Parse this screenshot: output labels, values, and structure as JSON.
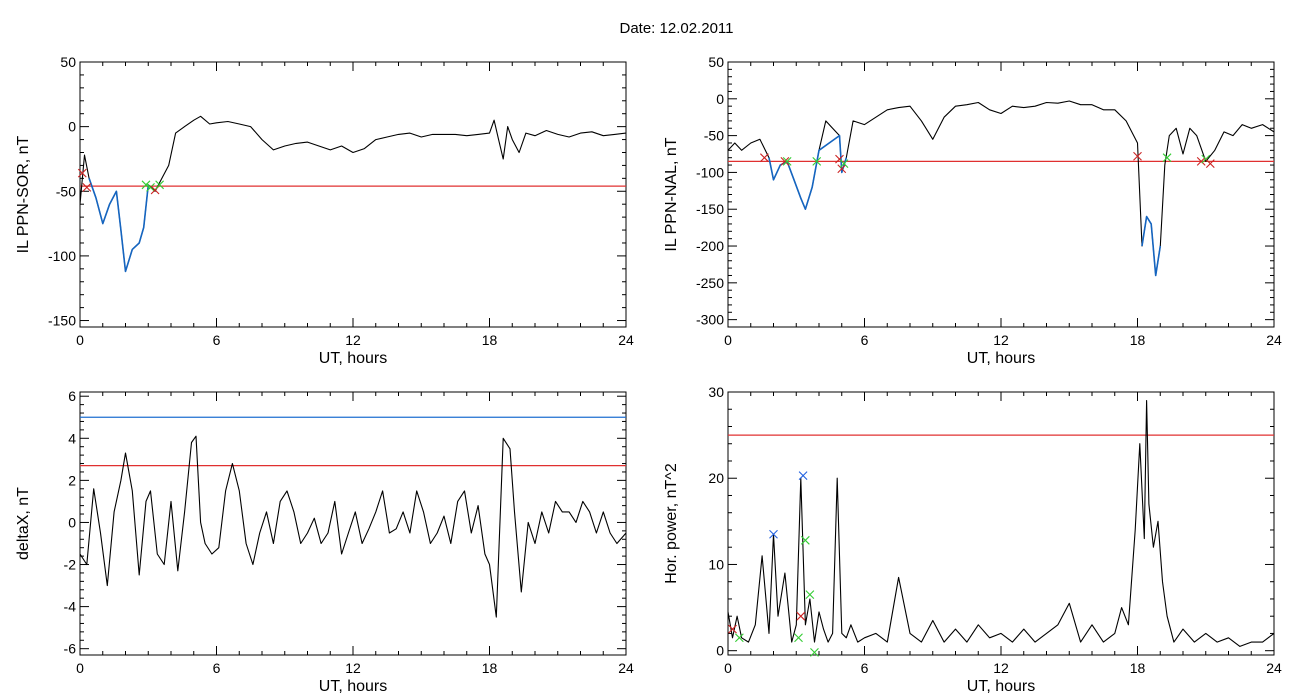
{
  "figure": {
    "title": "Date:  12.02.2011"
  },
  "colors": {
    "series": "#000000",
    "highlight": "#1565c0",
    "red_line": "#e03030",
    "blue_line": "#1f6fd0",
    "green_marker": "#33cc33",
    "red_marker": "#cc2222",
    "blue_marker": "#2060e0"
  },
  "chart_data": [
    {
      "type": "line",
      "id": "panel-sor",
      "xlabel": "UT, hours",
      "ylabel": "IL PPN-SOR, nT",
      "xlim": [
        0,
        24
      ],
      "ylim": [
        -155,
        50
      ],
      "xticks": [
        0,
        6,
        12,
        18,
        24
      ],
      "yticks": [
        50,
        0,
        -50,
        -100,
        -150
      ],
      "threshold_lines": [
        {
          "color": "red",
          "y": -46
        }
      ],
      "series": [
        {
          "color": "black",
          "x": [
            0,
            0.2,
            0.4,
            0.7,
            1.0,
            1.3,
            1.6,
            1.8,
            2.0,
            2.3,
            2.6,
            2.8,
            3.0,
            3.3,
            3.6,
            3.9,
            4.2,
            4.6,
            5.0,
            5.3,
            5.7,
            6.0,
            6.5,
            7.0,
            7.5,
            8.0,
            8.5,
            9.0,
            9.5,
            10.0,
            10.5,
            11.0,
            11.5,
            12.0,
            12.5,
            13.0,
            13.5,
            14.0,
            14.5,
            15.0,
            15.5,
            16.0,
            16.5,
            17.0,
            17.5,
            18.0,
            18.2,
            18.4,
            18.6,
            18.8,
            19.0,
            19.3,
            19.6,
            20.0,
            20.5,
            21.0,
            21.5,
            22.0,
            22.5,
            23.0,
            23.5,
            24.0
          ],
          "y": [
            -60,
            -22,
            -40,
            -55,
            -75,
            -60,
            -50,
            -80,
            -112,
            -95,
            -90,
            -78,
            -45,
            -50,
            -40,
            -30,
            -5,
            0,
            5,
            8,
            2,
            3,
            4,
            2,
            0,
            -10,
            -18,
            -15,
            -13,
            -12,
            -15,
            -18,
            -15,
            -20,
            -17,
            -10,
            -8,
            -6,
            -5,
            -8,
            -6,
            -6,
            -6,
            -7,
            -6,
            -5,
            5,
            -10,
            -25,
            0,
            -10,
            -20,
            -5,
            -7,
            -3,
            -6,
            -8,
            -5,
            -4,
            -7,
            -6,
            -5
          ]
        },
        {
          "color": "blue",
          "x": [
            0.4,
            0.7,
            1.0,
            1.3,
            1.6,
            1.8,
            2.0,
            2.3,
            2.6,
            2.8,
            3.0
          ],
          "y": [
            -40,
            -55,
            -75,
            -60,
            -50,
            -80,
            -112,
            -95,
            -90,
            -78,
            -45
          ]
        }
      ],
      "markers": [
        {
          "color": "red",
          "x": 0.1,
          "y": -36
        },
        {
          "color": "red",
          "x": 0.3,
          "y": -47
        },
        {
          "color": "green",
          "x": 2.9,
          "y": -45
        },
        {
          "color": "green",
          "x": 3.1,
          "y": -47
        },
        {
          "color": "red",
          "x": 3.3,
          "y": -49
        },
        {
          "color": "green",
          "x": 3.5,
          "y": -45
        }
      ]
    },
    {
      "type": "line",
      "id": "panel-nal",
      "xlabel": "UT, hours",
      "ylabel": "IL PPN-NAL, nT",
      "xlim": [
        0,
        24
      ],
      "ylim": [
        -310,
        50
      ],
      "xticks": [
        0,
        6,
        12,
        18,
        24
      ],
      "yticks": [
        50,
        0,
        -50,
        -100,
        -150,
        -200,
        -250,
        -300
      ],
      "threshold_lines": [
        {
          "color": "red",
          "y": -85
        }
      ],
      "series": [
        {
          "color": "black",
          "x": [
            0,
            0.3,
            0.6,
            1.0,
            1.4,
            1.8,
            2.0,
            2.3,
            2.6,
            2.9,
            3.2,
            3.4,
            3.7,
            4.0,
            4.3,
            4.6,
            4.9,
            5.0,
            5.2,
            5.5,
            6.0,
            6.5,
            7.0,
            7.5,
            8.0,
            8.5,
            9.0,
            9.5,
            10.0,
            10.5,
            11.0,
            11.5,
            12.0,
            12.5,
            13.0,
            13.5,
            14.0,
            14.5,
            15.0,
            15.5,
            16.0,
            16.5,
            17.0,
            17.5,
            18.0,
            18.2,
            18.4,
            18.6,
            18.8,
            19.0,
            19.2,
            19.4,
            19.7,
            20.0,
            20.3,
            20.6,
            21.0,
            21.4,
            21.8,
            22.2,
            22.6,
            23.0,
            23.5,
            24.0
          ],
          "y": [
            -70,
            -60,
            -70,
            -60,
            -55,
            -80,
            -110,
            -90,
            -85,
            -110,
            -135,
            -150,
            -120,
            -70,
            -30,
            -40,
            -50,
            -100,
            -80,
            -30,
            -35,
            -25,
            -15,
            -12,
            -10,
            -30,
            -55,
            -25,
            -10,
            -8,
            -5,
            -15,
            -20,
            -10,
            -12,
            -10,
            -5,
            -6,
            -3,
            -8,
            -8,
            -15,
            -15,
            -30,
            -60,
            -200,
            -160,
            -170,
            -240,
            -200,
            -90,
            -50,
            -40,
            -75,
            -40,
            -50,
            -85,
            -70,
            -45,
            -50,
            -35,
            -40,
            -35,
            -45
          ]
        },
        {
          "color": "blue",
          "x": [
            1.8,
            2.0,
            2.3,
            2.6,
            2.9,
            3.2,
            3.4,
            3.7,
            4.0,
            4.9,
            5.0,
            5.2,
            18.2,
            18.4,
            18.6,
            18.8,
            19.0
          ],
          "y": [
            -80,
            -110,
            -90,
            -85,
            -110,
            -135,
            -150,
            -120,
            -70,
            -50,
            -100,
            -80,
            -200,
            -160,
            -170,
            -240,
            -200
          ]
        }
      ],
      "markers": [
        {
          "color": "red",
          "x": 1.6,
          "y": -80
        },
        {
          "color": "red",
          "x": 2.5,
          "y": -85
        },
        {
          "color": "green",
          "x": 2.6,
          "y": -85
        },
        {
          "color": "green",
          "x": 3.9,
          "y": -85
        },
        {
          "color": "red",
          "x": 4.9,
          "y": -82
        },
        {
          "color": "red",
          "x": 5.0,
          "y": -95
        },
        {
          "color": "green",
          "x": 5.1,
          "y": -88
        },
        {
          "color": "red",
          "x": 18.0,
          "y": -78
        },
        {
          "color": "green",
          "x": 19.3,
          "y": -80
        },
        {
          "color": "red",
          "x": 20.8,
          "y": -85
        },
        {
          "color": "green",
          "x": 21.0,
          "y": -82
        },
        {
          "color": "red",
          "x": 21.2,
          "y": -88
        }
      ]
    },
    {
      "type": "line",
      "id": "panel-deltax",
      "xlabel": "UT, hours",
      "ylabel": "deltaX, nT",
      "xlim": [
        0,
        24
      ],
      "ylim": [
        -6.3,
        6.2
      ],
      "xticks": [
        0,
        6,
        12,
        18,
        24
      ],
      "yticks": [
        6,
        4,
        2,
        0,
        -2,
        -4,
        -6
      ],
      "threshold_lines": [
        {
          "color": "blue",
          "y": 5.0
        },
        {
          "color": "red",
          "y": 2.7
        }
      ],
      "series": [
        {
          "color": "black",
          "x": [
            0,
            0.3,
            0.6,
            0.9,
            1.2,
            1.5,
            1.8,
            2.0,
            2.3,
            2.6,
            2.9,
            3.1,
            3.4,
            3.7,
            4.0,
            4.3,
            4.6,
            4.9,
            5.1,
            5.3,
            5.5,
            5.8,
            6.1,
            6.4,
            6.7,
            7.0,
            7.3,
            7.6,
            7.9,
            8.2,
            8.5,
            8.8,
            9.1,
            9.4,
            9.7,
            10.0,
            10.3,
            10.6,
            10.9,
            11.2,
            11.5,
            11.8,
            12.1,
            12.4,
            12.7,
            13.0,
            13.3,
            13.6,
            13.9,
            14.2,
            14.5,
            14.8,
            15.1,
            15.4,
            15.7,
            16.0,
            16.3,
            16.6,
            16.9,
            17.2,
            17.5,
            17.8,
            18.0,
            18.3,
            18.6,
            18.9,
            19.1,
            19.4,
            19.7,
            20.0,
            20.3,
            20.6,
            20.9,
            21.2,
            21.5,
            21.8,
            22.1,
            22.4,
            22.7,
            23.0,
            23.3,
            23.6,
            24.0
          ],
          "y": [
            -1.5,
            -2.0,
            1.6,
            -0.5,
            -3.0,
            0.5,
            2.0,
            3.3,
            1.5,
            -2.5,
            1.0,
            1.5,
            -1.5,
            -2.0,
            1.0,
            -2.3,
            0.5,
            3.8,
            4.1,
            0.0,
            -1.0,
            -1.5,
            -1.2,
            1.5,
            2.8,
            1.5,
            -1.0,
            -2.0,
            -0.5,
            0.5,
            -1.0,
            1.0,
            1.5,
            0.5,
            -1.0,
            -0.5,
            0.2,
            -1.0,
            -0.5,
            1.0,
            -1.5,
            -0.5,
            0.5,
            -1.0,
            -0.3,
            0.5,
            1.5,
            -0.5,
            -0.3,
            0.5,
            -0.5,
            1.5,
            0.5,
            -1.0,
            -0.5,
            0.3,
            -1.0,
            1.0,
            1.5,
            -0.5,
            0.8,
            -1.5,
            -2.0,
            -4.5,
            4.0,
            3.5,
            0.5,
            -3.3,
            0.0,
            -1.0,
            0.5,
            -0.5,
            1.0,
            0.5,
            0.5,
            0.0,
            1.0,
            0.5,
            -0.5,
            0.5,
            -0.5,
            -1.0,
            -0.5
          ]
        }
      ],
      "markers": []
    },
    {
      "type": "line",
      "id": "panel-power",
      "xlabel": "UT, hours",
      "ylabel": "Hor. power, nT^2",
      "xlim": [
        0,
        24
      ],
      "ylim": [
        -0.5,
        30
      ],
      "xticks": [
        0,
        6,
        12,
        18,
        24
      ],
      "yticks": [
        30,
        20,
        10,
        0
      ],
      "threshold_lines": [
        {
          "color": "red",
          "y": 25
        }
      ],
      "series": [
        {
          "color": "black",
          "x": [
            0,
            0.2,
            0.4,
            0.6,
            0.9,
            1.2,
            1.5,
            1.8,
            2.0,
            2.2,
            2.5,
            2.8,
            3.0,
            3.2,
            3.4,
            3.6,
            3.8,
            4.0,
            4.2,
            4.4,
            4.6,
            4.8,
            5.0,
            5.2,
            5.4,
            5.7,
            6.0,
            6.5,
            7.0,
            7.5,
            8.0,
            8.5,
            9.0,
            9.5,
            10.0,
            10.5,
            11.0,
            11.5,
            12.0,
            12.5,
            13.0,
            13.5,
            14.0,
            14.5,
            15.0,
            15.5,
            16.0,
            16.5,
            17.0,
            17.3,
            17.6,
            17.9,
            18.1,
            18.3,
            18.4,
            18.5,
            18.7,
            18.9,
            19.1,
            19.3,
            19.6,
            20.0,
            20.5,
            21.0,
            21.5,
            22.0,
            22.5,
            23.0,
            23.5,
            24.0
          ],
          "y": [
            4.5,
            1.5,
            4.0,
            1.5,
            1.0,
            3.0,
            11.0,
            2.0,
            13.5,
            4.0,
            9.0,
            1.0,
            3.0,
            20.0,
            3.0,
            6.0,
            1.0,
            4.5,
            2.5,
            1.0,
            2.0,
            20.0,
            2.0,
            1.5,
            3.0,
            1.0,
            1.5,
            2.0,
            1.0,
            8.5,
            2.0,
            1.0,
            3.5,
            1.0,
            2.5,
            1.0,
            3.0,
            1.5,
            2.0,
            1.0,
            2.5,
            1.0,
            2.0,
            3.0,
            5.5,
            1.0,
            3.0,
            1.0,
            2.0,
            5.0,
            3.0,
            14.0,
            24.0,
            13.0,
            29.0,
            17.0,
            12.0,
            15.0,
            8.0,
            4.0,
            1.0,
            2.5,
            1.0,
            2.0,
            1.0,
            1.5,
            0.5,
            1.0,
            1.0,
            2.0
          ]
        }
      ],
      "markers": [
        {
          "color": "red",
          "x": 0.2,
          "y": 2.5
        },
        {
          "color": "green",
          "x": 0.5,
          "y": 1.5
        },
        {
          "color": "blue",
          "x": 2.0,
          "y": 13.5
        },
        {
          "color": "blue",
          "x": 3.3,
          "y": 20.3
        },
        {
          "color": "green",
          "x": 3.4,
          "y": 12.8
        },
        {
          "color": "red",
          "x": 3.2,
          "y": 4.0
        },
        {
          "color": "green",
          "x": 3.6,
          "y": 6.5
        },
        {
          "color": "green",
          "x": 3.1,
          "y": 1.5
        },
        {
          "color": "green",
          "x": 3.8,
          "y": -0.2
        }
      ]
    }
  ]
}
